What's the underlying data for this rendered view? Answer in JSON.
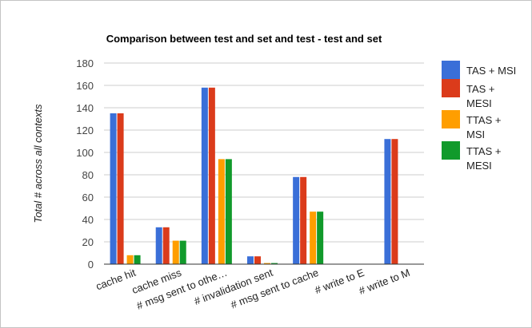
{
  "chart_data": {
    "type": "bar",
    "title": "Comparison between test and set and test - test and set",
    "xlabel": "",
    "ylabel": "Total # across all contexts",
    "ylim": [
      0,
      180
    ],
    "yticks": [
      0,
      20,
      40,
      60,
      80,
      100,
      120,
      140,
      160,
      180
    ],
    "grid": true,
    "legend_position": "right",
    "categories": [
      "cache hit",
      "cache miss",
      "# msg sent to othe…",
      "# invalidation sent",
      "# msg sent to cache",
      "# write to E",
      "# write to M"
    ],
    "series": [
      {
        "name": "TAS + MSI",
        "legend_lines": [
          "TAS + MSI"
        ],
        "color": "#3a6fd8",
        "values": [
          135,
          33,
          158,
          7,
          78,
          0,
          112
        ]
      },
      {
        "name": "TAS + MESI",
        "legend_lines": [
          "TAS +",
          "MESI"
        ],
        "color": "#db3b1b",
        "values": [
          135,
          33,
          158,
          7,
          78,
          0,
          112
        ]
      },
      {
        "name": "TTAS + MSI",
        "legend_lines": [
          "TTAS +",
          "MSI"
        ],
        "color": "#ff9e00",
        "values": [
          8,
          21,
          94,
          1,
          47,
          0,
          0
        ]
      },
      {
        "name": "TTAS + MESI",
        "legend_lines": [
          "TTAS +",
          "MESI"
        ],
        "color": "#119a2b",
        "values": [
          8,
          21,
          94,
          1,
          47,
          0,
          0
        ]
      }
    ]
  }
}
